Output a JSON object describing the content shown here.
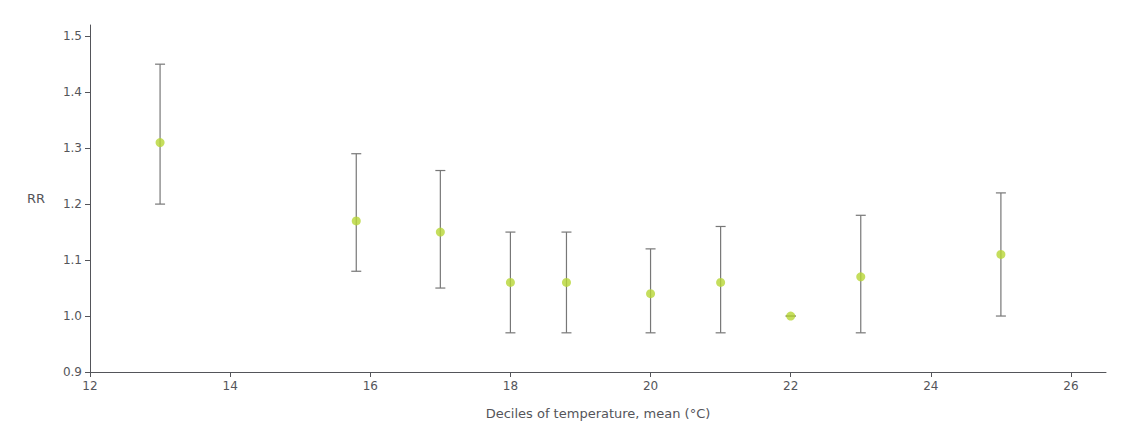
{
  "chart_data": {
    "type": "scatter",
    "x": [
      13.0,
      15.8,
      17.0,
      18.0,
      18.8,
      20.0,
      21.0,
      22.0,
      23.0,
      25.0
    ],
    "values": [
      1.31,
      1.17,
      1.15,
      1.06,
      1.06,
      1.04,
      1.06,
      1.0,
      1.07,
      1.11
    ],
    "ci_low": [
      1.2,
      1.08,
      1.05,
      0.97,
      0.97,
      0.97,
      0.97,
      1.0,
      0.97,
      1.0
    ],
    "ci_high": [
      1.45,
      1.29,
      1.26,
      1.15,
      1.15,
      1.12,
      1.16,
      1.0,
      1.18,
      1.22
    ],
    "xlabel": "Deciles of temperature, mean (°C)",
    "ylabel": "RR",
    "xlim": [
      12,
      26.5
    ],
    "ylim": [
      0.9,
      1.52
    ],
    "xticks": [
      12,
      14,
      16,
      18,
      20,
      22,
      24,
      26
    ],
    "yticks": [
      0.9,
      {
        "value": 1.0,
        "label": "1.0"
      },
      1.1,
      1.2,
      1.3,
      1.4,
      1.5
    ],
    "grid": false
  }
}
